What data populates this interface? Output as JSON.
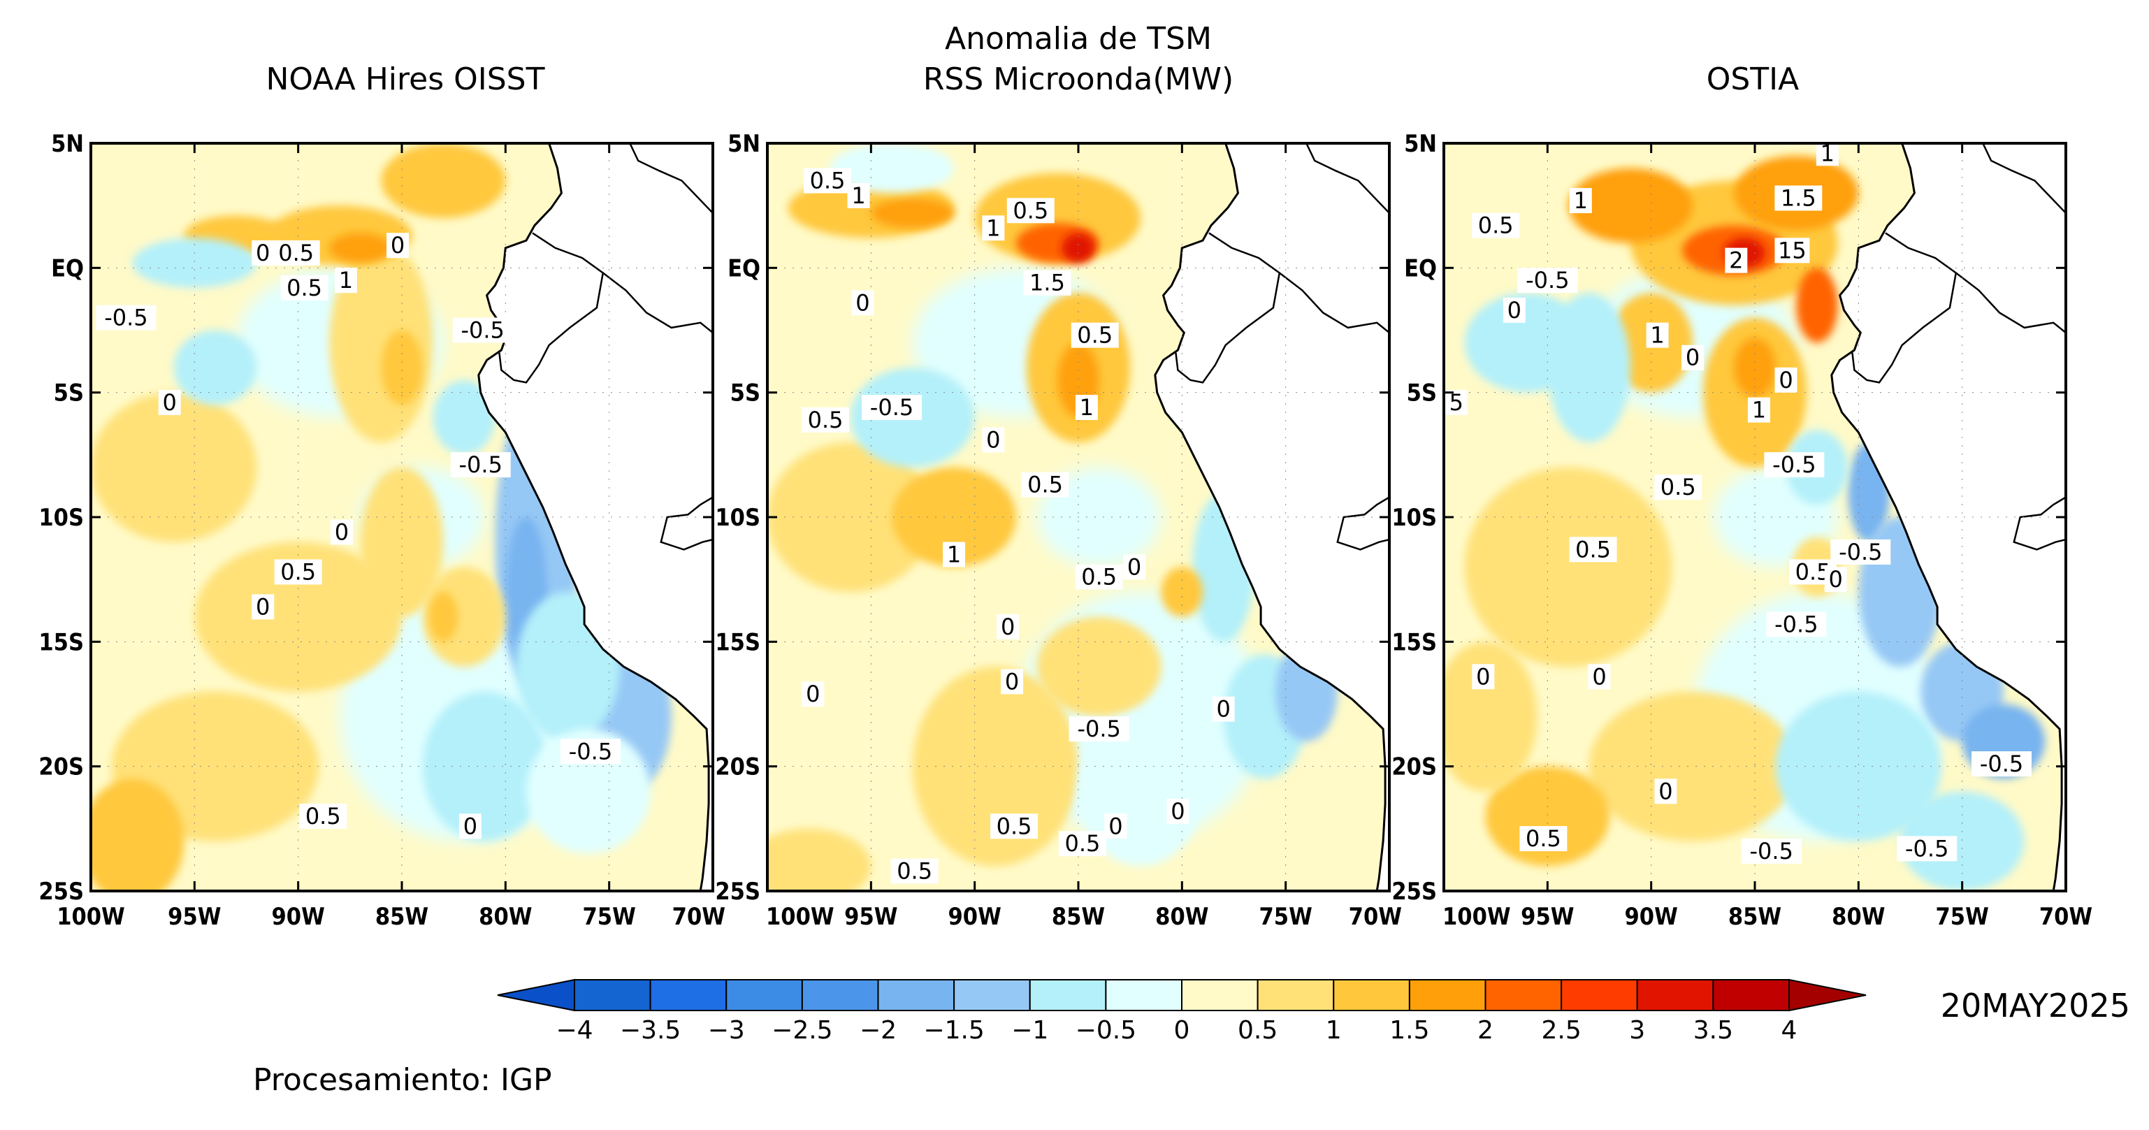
{
  "figure": {
    "title_line1": "Anomalia de TSM",
    "title_line2": "RSS Microonda(MW)",
    "date": "20MAY2025",
    "credit": "Procesamiento: IGP"
  },
  "panels": [
    {
      "id": "noaa",
      "title": "NOAA Hires OISST",
      "contour_labels": [
        {
          "text": "0",
          "lon": -91.7,
          "lat": 0.6
        },
        {
          "text": "0.5",
          "lon": -90.1,
          "lat": 0.6
        },
        {
          "text": "0.5",
          "lon": -89.7,
          "lat": -0.8
        },
        {
          "text": "1",
          "lon": -87.7,
          "lat": -0.5
        },
        {
          "text": "0",
          "lon": -85.2,
          "lat": 0.9
        },
        {
          "text": "-0.5",
          "lon": -98.3,
          "lat": -2.0
        },
        {
          "text": "-0.5",
          "lon": -81.1,
          "lat": -2.5
        },
        {
          "text": "0",
          "lon": -96.2,
          "lat": -5.4
        },
        {
          "text": "-0.5",
          "lon": -81.2,
          "lat": -7.9
        },
        {
          "text": "0",
          "lon": -87.9,
          "lat": -10.6
        },
        {
          "text": "0.5",
          "lon": -90.0,
          "lat": -12.2
        },
        {
          "text": "0",
          "lon": -91.7,
          "lat": -13.6
        },
        {
          "text": "-0.5",
          "lon": -75.9,
          "lat": -19.4
        },
        {
          "text": "0.5",
          "lon": -88.8,
          "lat": -22.0
        },
        {
          "text": "0",
          "lon": -81.7,
          "lat": -22.4
        }
      ]
    },
    {
      "id": "rss",
      "title": "",
      "contour_labels": [
        {
          "text": "0.5",
          "lon": -97.1,
          "lat": 3.5
        },
        {
          "text": "1",
          "lon": -95.6,
          "lat": 2.9
        },
        {
          "text": "1",
          "lon": -89.1,
          "lat": 1.6
        },
        {
          "text": "0.5",
          "lon": -87.3,
          "lat": 2.3
        },
        {
          "text": "1.5",
          "lon": -86.5,
          "lat": -0.6
        },
        {
          "text": "0",
          "lon": -95.4,
          "lat": -1.4
        },
        {
          "text": "0.5",
          "lon": -84.2,
          "lat": -2.7
        },
        {
          "text": "0.5",
          "lon": -97.2,
          "lat": -6.1
        },
        {
          "text": "-0.5",
          "lon": -94.0,
          "lat": -5.6
        },
        {
          "text": "1",
          "lon": -84.6,
          "lat": -5.6
        },
        {
          "text": "0",
          "lon": -89.1,
          "lat": -6.9
        },
        {
          "text": "0.5",
          "lon": -86.6,
          "lat": -8.7
        },
        {
          "text": "1",
          "lon": -91.0,
          "lat": -11.5
        },
        {
          "text": "0.5",
          "lon": -84.0,
          "lat": -12.4
        },
        {
          "text": "0",
          "lon": -82.3,
          "lat": -12.0
        },
        {
          "text": "0",
          "lon": -88.4,
          "lat": -14.4
        },
        {
          "text": "0",
          "lon": -97.8,
          "lat": -17.1
        },
        {
          "text": "0",
          "lon": -88.2,
          "lat": -16.6
        },
        {
          "text": "-0.5",
          "lon": -84.0,
          "lat": -18.5
        },
        {
          "text": "0",
          "lon": -78.0,
          "lat": -17.7
        },
        {
          "text": "0",
          "lon": -80.2,
          "lat": -21.8
        },
        {
          "text": "0.5",
          "lon": -88.1,
          "lat": -22.4
        },
        {
          "text": "0.5",
          "lon": -84.8,
          "lat": -23.1
        },
        {
          "text": "0.5",
          "lon": -92.9,
          "lat": -24.2
        },
        {
          "text": "0",
          "lon": -83.2,
          "lat": -22.4
        }
      ]
    },
    {
      "id": "ostia",
      "title": "OSTIA",
      "contour_labels": [
        {
          "text": "1",
          "lon": -81.5,
          "lat": 4.6
        },
        {
          "text": "1",
          "lon": -93.4,
          "lat": 2.7
        },
        {
          "text": "1.5",
          "lon": -82.9,
          "lat": 2.8
        },
        {
          "text": "0.5",
          "lon": -97.5,
          "lat": 1.7
        },
        {
          "text": "2",
          "lon": -85.9,
          "lat": 0.3
        },
        {
          "text": "15",
          "lon": -83.2,
          "lat": 0.7
        },
        {
          "text": "-0.5",
          "lon": -95.0,
          "lat": -0.5
        },
        {
          "text": "0",
          "lon": -96.6,
          "lat": -1.7
        },
        {
          "text": "1",
          "lon": -89.7,
          "lat": -2.7
        },
        {
          "text": "0",
          "lon": -88.0,
          "lat": -3.6
        },
        {
          "text": "0",
          "lon": -83.5,
          "lat": -4.5
        },
        {
          "text": "5",
          "lon": -99.4,
          "lat": -5.4
        },
        {
          "text": "1",
          "lon": -84.8,
          "lat": -5.7
        },
        {
          "text": "-0.5",
          "lon": -83.1,
          "lat": -7.9
        },
        {
          "text": "0.5",
          "lon": -88.7,
          "lat": -8.8
        },
        {
          "text": "0.5",
          "lon": -92.8,
          "lat": -11.3
        },
        {
          "text": "-0.5",
          "lon": -79.9,
          "lat": -11.4
        },
        {
          "text": "0.5",
          "lon": -82.2,
          "lat": -12.2
        },
        {
          "text": "0",
          "lon": -81.1,
          "lat": -12.5
        },
        {
          "text": "-0.5",
          "lon": -83.0,
          "lat": -14.3
        },
        {
          "text": "0",
          "lon": -98.1,
          "lat": -16.4
        },
        {
          "text": "0",
          "lon": -92.5,
          "lat": -16.4
        },
        {
          "text": "-0.5",
          "lon": -73.1,
          "lat": -19.9
        },
        {
          "text": "0",
          "lon": -89.3,
          "lat": -21.0
        },
        {
          "text": "0.5",
          "lon": -95.2,
          "lat": -22.9
        },
        {
          "text": "-0.5",
          "lon": -84.2,
          "lat": -23.4
        },
        {
          "text": "-0.5",
          "lon": -76.7,
          "lat": -23.3
        }
      ]
    }
  ],
  "axes": {
    "lon_min": -100,
    "lon_max": -70,
    "lat_min": -25,
    "lat_max": 5,
    "x_ticks": [
      {
        "value": -100,
        "label": "100W"
      },
      {
        "value": -95,
        "label": "95W"
      },
      {
        "value": -90,
        "label": "90W"
      },
      {
        "value": -85,
        "label": "85W"
      },
      {
        "value": -80,
        "label": "80W"
      },
      {
        "value": -75,
        "label": "75W"
      },
      {
        "value": -70,
        "label": "70W"
      }
    ],
    "y_ticks": [
      {
        "value": 5,
        "label": "5N"
      },
      {
        "value": 0,
        "label": "EQ"
      },
      {
        "value": -5,
        "label": "5S"
      },
      {
        "value": -10,
        "label": "10S"
      },
      {
        "value": -15,
        "label": "15S"
      },
      {
        "value": -20,
        "label": "20S"
      },
      {
        "value": -25,
        "label": "25S"
      }
    ]
  },
  "colorbar": {
    "levels": [
      -4,
      -3.5,
      -3,
      -2.5,
      -2,
      -1.5,
      -1,
      -0.5,
      0,
      0.5,
      1,
      1.5,
      2,
      2.5,
      3,
      3.5,
      4
    ],
    "labels": [
      "−4",
      "−3.5",
      "−3",
      "−2.5",
      "−2",
      "−1.5",
      "−1",
      "−0.5",
      "0",
      "0.5",
      "1",
      "1.5",
      "2",
      "2.5",
      "3",
      "3.5",
      "4"
    ],
    "colors": [
      "#1464d2",
      "#1e6ee6",
      "#3c8ce6",
      "#4b96ea",
      "#78b4f0",
      "#96c8f5",
      "#b4f0fa",
      "#e1ffff",
      "#fffac8",
      "#ffe178",
      "#ffc83c",
      "#ffa00a",
      "#ff6400",
      "#ff3c00",
      "#e11400",
      "#c00000"
    ],
    "under_color": "#0a50c8",
    "over_color": "#a50000"
  },
  "anomaly_colors": {
    "neg_strong": "#78b4f0",
    "neg": "#96c8f5",
    "neg_light": "#b4f0fa",
    "zero_neg": "#e1ffff",
    "zero_pos": "#fffac8",
    "pos": "#ffe178",
    "pos_mid": "#ffc83c",
    "pos_strong": "#ffa00a",
    "pos_hot": "#ff6400",
    "pos_max": "#e11400",
    "land": "#ffffff",
    "coast": "#000000"
  }
}
